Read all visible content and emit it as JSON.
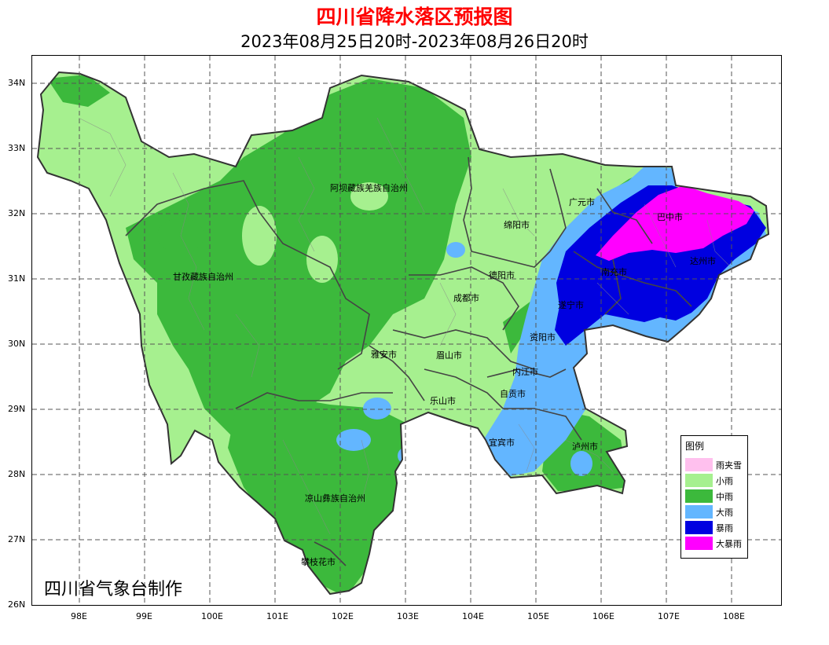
{
  "title": "四川省降水落区预报图",
  "subtitle": "2023年08月25日20时-2023年08月26日20时",
  "credit": "四川省气象台制作",
  "axes": {
    "lat_ticks": [
      "34N",
      "33N",
      "32N",
      "31N",
      "30N",
      "29N",
      "28N",
      "27N",
      "26N"
    ],
    "lon_ticks": [
      "98E",
      "99E",
      "100E",
      "101E",
      "102E",
      "103E",
      "104E",
      "105E",
      "106E",
      "107E",
      "108E"
    ],
    "grid": "dashed"
  },
  "legend": {
    "title": "图例",
    "items": [
      {
        "label": "雨夹雪",
        "color": "#ffc0ee"
      },
      {
        "label": "小雨",
        "color": "#a6f08f"
      },
      {
        "label": "中雨",
        "color": "#3cb93c"
      },
      {
        "label": "大雨",
        "color": "#63b6ff"
      },
      {
        "label": "暴雨",
        "color": "#0000e0"
      },
      {
        "label": "大暴雨",
        "color": "#ff00ff"
      }
    ]
  },
  "regions": [
    {
      "name": "阿坝藏族羌族自治州"
    },
    {
      "name": "甘孜藏族自治州"
    },
    {
      "name": "凉山彝族自治州"
    },
    {
      "name": "攀枝花市"
    },
    {
      "name": "广元市"
    },
    {
      "name": "巴中市"
    },
    {
      "name": "绵阳市"
    },
    {
      "name": "德阳市"
    },
    {
      "name": "成都市"
    },
    {
      "name": "达州市"
    },
    {
      "name": "南充市"
    },
    {
      "name": "遂宁市"
    },
    {
      "name": "资阳市"
    },
    {
      "name": "雅安市"
    },
    {
      "name": "眉山市"
    },
    {
      "name": "内江市"
    },
    {
      "name": "乐山市"
    },
    {
      "name": "自贡市"
    },
    {
      "name": "宜宾市"
    },
    {
      "name": "泸州市"
    }
  ]
}
